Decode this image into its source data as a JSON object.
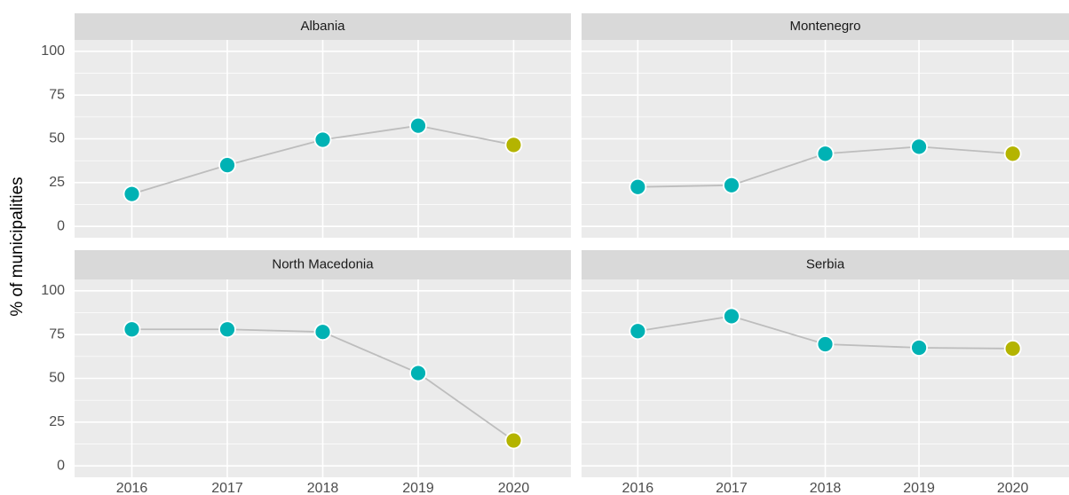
{
  "ylabel": "% of municipalities",
  "chart_data": [
    {
      "type": "line",
      "title": "Albania",
      "x": [
        2016,
        2017,
        2018,
        2019,
        2020
      ],
      "values": [
        18.5,
        35,
        49.5,
        57.5,
        46.5
      ],
      "colors": [
        "#00b2b4",
        "#00b2b4",
        "#00b2b4",
        "#00b2b4",
        "#b4b400"
      ],
      "line_color": "#bdbdbd",
      "xlim": [
        2015.4,
        2020.6
      ],
      "xticks": [
        2016,
        2017,
        2018,
        2019,
        2020
      ],
      "ylim": [
        -6.5,
        106.5
      ],
      "yticks": [
        0,
        25,
        50,
        75,
        100
      ],
      "grid": true
    },
    {
      "type": "line",
      "title": "Montenegro",
      "x": [
        2016,
        2017,
        2018,
        2019,
        2020
      ],
      "values": [
        22.5,
        23.5,
        41.5,
        45.5,
        41.5
      ],
      "colors": [
        "#00b2b4",
        "#00b2b4",
        "#00b2b4",
        "#00b2b4",
        "#b4b400"
      ],
      "line_color": "#bdbdbd",
      "xlim": [
        2015.4,
        2020.6
      ],
      "xticks": [
        2016,
        2017,
        2018,
        2019,
        2020
      ],
      "ylim": [
        -6.5,
        106.5
      ],
      "yticks": [
        0,
        25,
        50,
        75,
        100
      ],
      "grid": true
    },
    {
      "type": "line",
      "title": "North Macedonia",
      "x": [
        2016,
        2017,
        2018,
        2019,
        2020
      ],
      "values": [
        78,
        78,
        76.5,
        53,
        14.5
      ],
      "colors": [
        "#00b2b4",
        "#00b2b4",
        "#00b2b4",
        "#00b2b4",
        "#b4b400"
      ],
      "line_color": "#bdbdbd",
      "xlim": [
        2015.4,
        2020.6
      ],
      "xticks": [
        2016,
        2017,
        2018,
        2019,
        2020
      ],
      "ylim": [
        -6.5,
        106.5
      ],
      "yticks": [
        0,
        25,
        50,
        75,
        100
      ],
      "grid": true
    },
    {
      "type": "line",
      "title": "Serbia",
      "x": [
        2016,
        2017,
        2018,
        2019,
        2020
      ],
      "values": [
        77,
        85.5,
        69.5,
        67.5,
        67
      ],
      "colors": [
        "#00b2b4",
        "#00b2b4",
        "#00b2b4",
        "#00b2b4",
        "#b4b400"
      ],
      "line_color": "#bdbdbd",
      "xlim": [
        2015.4,
        2020.6
      ],
      "xticks": [
        2016,
        2017,
        2018,
        2019,
        2020
      ],
      "ylim": [
        -6.5,
        106.5
      ],
      "yticks": [
        0,
        25,
        50,
        75,
        100
      ],
      "grid": true
    }
  ]
}
